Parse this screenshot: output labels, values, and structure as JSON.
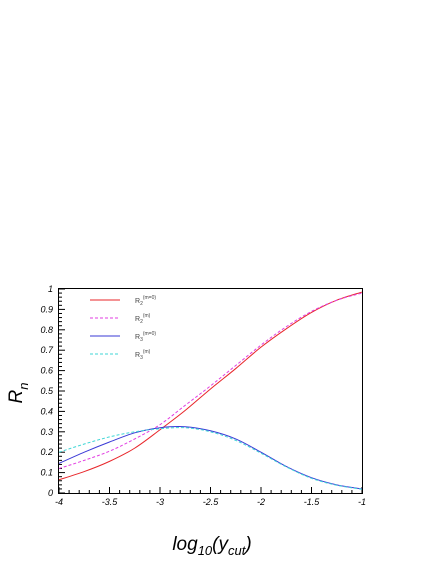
{
  "chart_data": {
    "type": "line",
    "xlabel": {
      "base": "log",
      "base_sub": "10",
      "open": "(y",
      "var_sub": "cut",
      "close": ")"
    },
    "ylabel": {
      "base": "R",
      "sub": "n"
    },
    "xlim": [
      -4,
      -1
    ],
    "ylim": [
      0,
      1
    ],
    "xticks": [
      -4,
      -3.5,
      -3,
      -2.5,
      -2,
      -1.5,
      -1
    ],
    "xtick_labels": [
      "-4",
      "-3.5",
      "-3",
      "-2.5",
      "-2",
      "-1.5",
      "-1"
    ],
    "yticks": [
      0,
      0.1,
      0.2,
      0.3,
      0.4,
      0.5,
      0.6,
      0.7,
      0.8,
      0.9,
      1
    ],
    "ytick_labels": [
      "0",
      "0.1",
      "0.2",
      "0.3",
      "0.4",
      "0.5",
      "0.6",
      "0.7",
      "0.8",
      "0.9",
      "1"
    ],
    "grid": false,
    "legend_position": "top-left",
    "series": [
      {
        "legend_base": "R",
        "legend_sub": "2",
        "legend_sup": "(m=0)",
        "color": "#e8262a",
        "dash": "solid",
        "x": [
          -4,
          -3.75,
          -3.5,
          -3.25,
          -3,
          -2.75,
          -2.5,
          -2.25,
          -2,
          -1.75,
          -1.5,
          -1.25,
          -1
        ],
        "y": [
          0.065,
          0.105,
          0.155,
          0.22,
          0.31,
          0.405,
          0.51,
          0.61,
          0.715,
          0.805,
          0.885,
          0.945,
          0.985
        ]
      },
      {
        "legend_base": "R",
        "legend_sub": "2",
        "legend_sup": "(m)",
        "color": "#e23ee2",
        "dash": "dashed",
        "x": [
          -4,
          -3.75,
          -3.5,
          -3.25,
          -3,
          -2.75,
          -2.5,
          -2.25,
          -2,
          -1.75,
          -1.5,
          -1.25,
          -1
        ],
        "y": [
          0.12,
          0.16,
          0.205,
          0.265,
          0.335,
          0.43,
          0.525,
          0.625,
          0.725,
          0.815,
          0.89,
          0.945,
          0.98
        ]
      },
      {
        "legend_base": "R",
        "legend_sub": "3",
        "legend_sup": "(m=0)",
        "color": "#3a3ad6",
        "dash": "solid",
        "x": [
          -4,
          -3.75,
          -3.5,
          -3.25,
          -3,
          -2.75,
          -2.5,
          -2.25,
          -2,
          -1.75,
          -1.5,
          -1.25,
          -1
        ],
        "y": [
          0.145,
          0.2,
          0.25,
          0.295,
          0.32,
          0.325,
          0.305,
          0.265,
          0.2,
          0.13,
          0.075,
          0.04,
          0.02
        ]
      },
      {
        "legend_base": "R",
        "legend_sub": "3",
        "legend_sup": "(m)",
        "color": "#3fd6d6",
        "dash": "dashed",
        "x": [
          -4,
          -3.75,
          -3.5,
          -3.25,
          -3,
          -2.75,
          -2.5,
          -2.25,
          -2,
          -1.75,
          -1.5,
          -1.25,
          -1
        ],
        "y": [
          0.2,
          0.24,
          0.275,
          0.3,
          0.315,
          0.32,
          0.3,
          0.258,
          0.195,
          0.128,
          0.072,
          0.038,
          0.018
        ]
      }
    ]
  }
}
